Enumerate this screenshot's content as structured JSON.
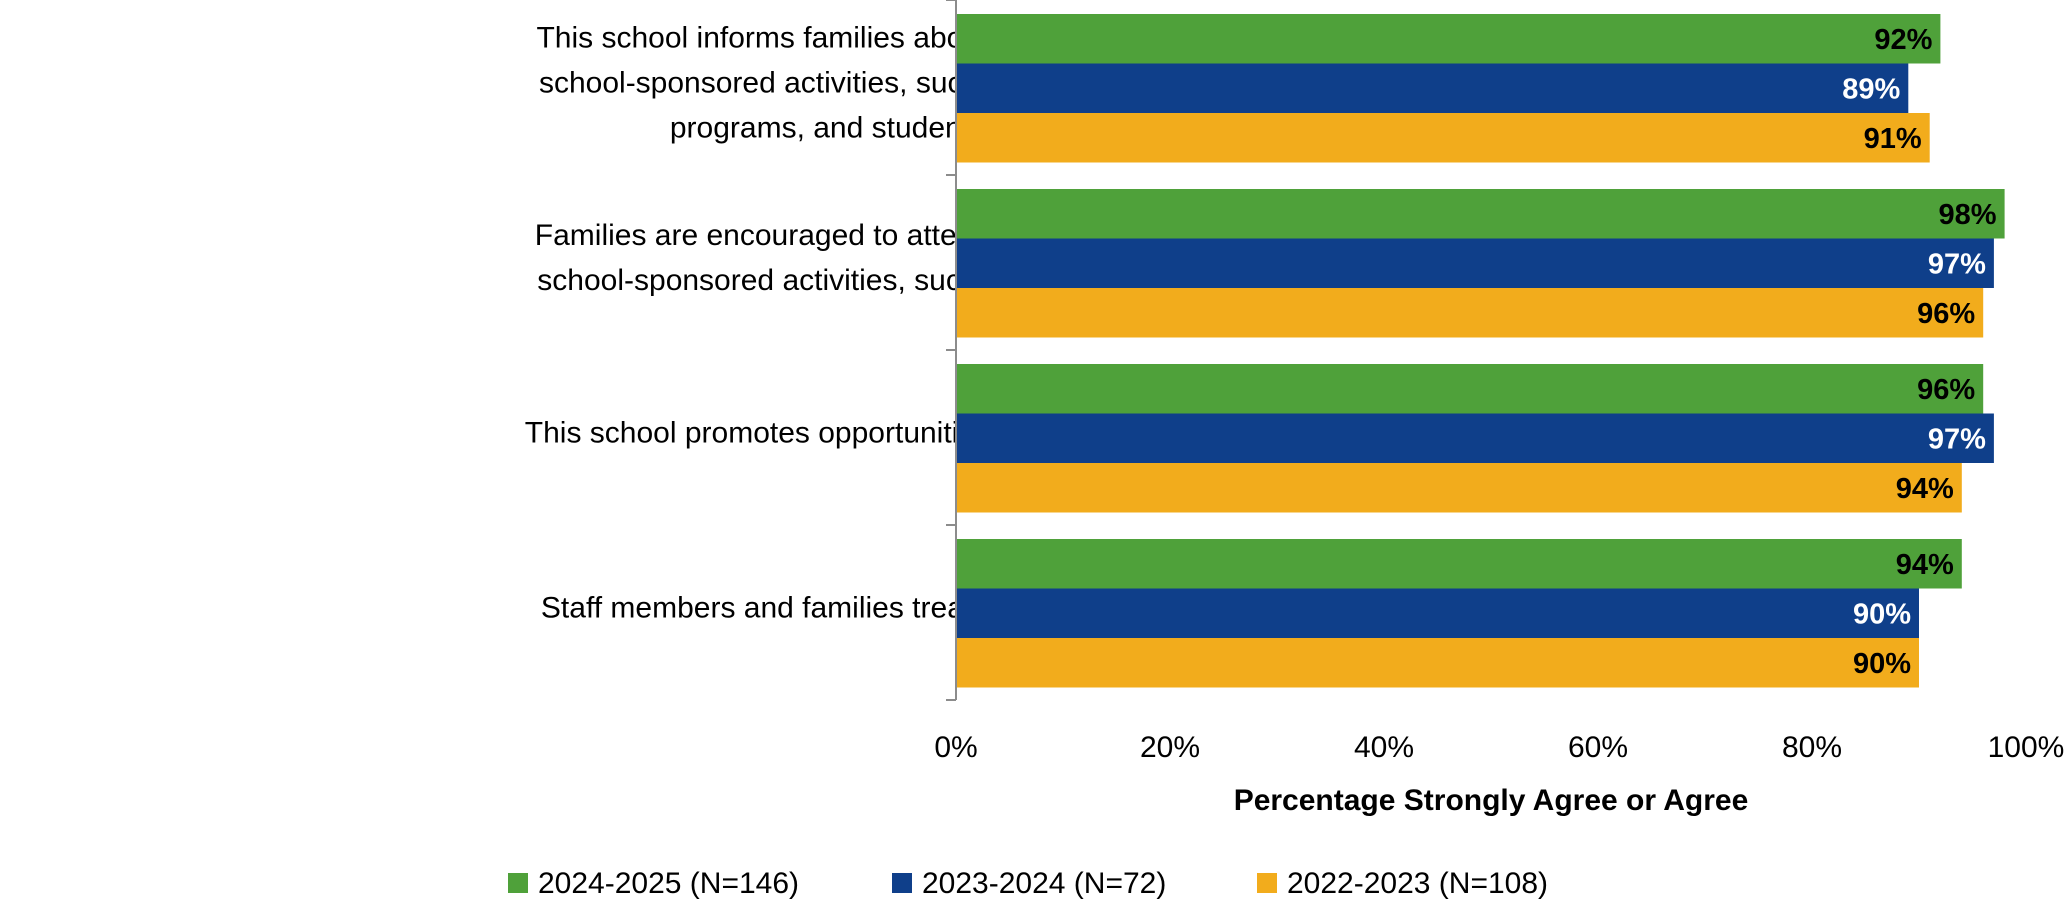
{
  "chart_data": {
    "type": "bar",
    "orientation": "horizontal",
    "title": "",
    "xlabel": "Percentage Strongly Agree or Agree",
    "ylabel": "",
    "xlim": [
      0,
      100
    ],
    "x_ticks": [
      "0%",
      "20%",
      "40%",
      "60%",
      "80%",
      "100%"
    ],
    "categories": [
      [
        "This school informs families about virtual and/or in-person",
        "school-sponsored activities, such as tutoring, after-school",
        "programs, and student performances."
      ],
      [
        "Families are encouraged to attend virtual and/or in-person",
        "school-sponsored activities, such as back-to-school night."
      ],
      [
        "This school promotes opportunities for families to volunteer."
      ],
      [
        "Staff members and families treat each other with respect."
      ]
    ],
    "series": [
      {
        "name": "2024-2025 (N=146)",
        "color": "#4fa13a",
        "label_color": "#000000",
        "values": [
          92,
          98,
          96,
          94
        ],
        "labels": [
          "92%",
          "98%",
          "96%",
          "94%"
        ]
      },
      {
        "name": "2023-2024 (N=72)",
        "color": "#0f3f8a",
        "label_color": "#ffffff",
        "values": [
          89,
          97,
          97,
          90
        ],
        "labels": [
          "89%",
          "97%",
          "97%",
          "90%"
        ]
      },
      {
        "name": "2022-2023 (N=108)",
        "color": "#f2ac1c",
        "label_color": "#000000",
        "values": [
          91,
          96,
          94,
          90
        ],
        "labels": [
          "91%",
          "96%",
          "94%",
          "90%"
        ]
      }
    ],
    "grid": false,
    "legend_position": "bottom"
  }
}
